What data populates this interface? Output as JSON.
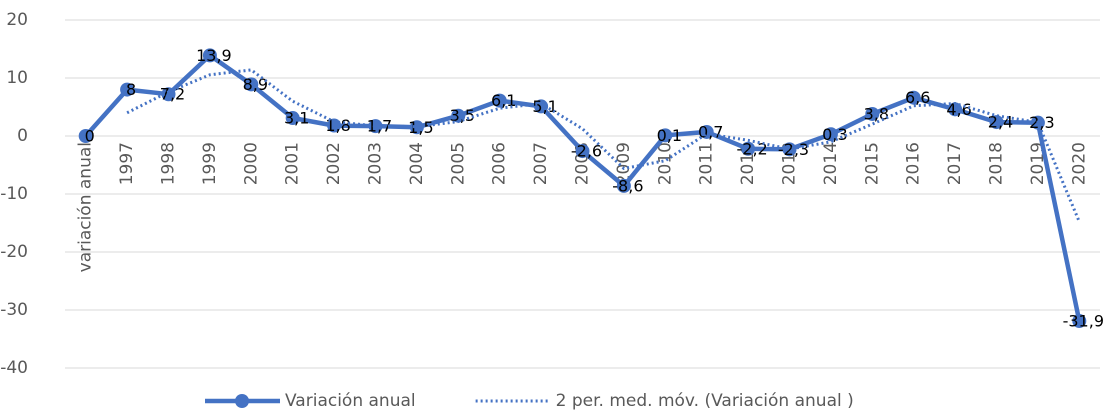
{
  "chart_data": {
    "type": "line",
    "categories": [
      "variación anual",
      "1997",
      "1998",
      "1999",
      "2000",
      "2001",
      "2002",
      "2003",
      "2004",
      "2005",
      "2006",
      "2007",
      "2008",
      "2009",
      "2010",
      "2011",
      "2012",
      "2013",
      "2014",
      "2015",
      "2016",
      "2017",
      "2018",
      "2019",
      "2020"
    ],
    "series": [
      {
        "name": "Variación anual",
        "color": "#4472c4",
        "style": "solid",
        "markers": true,
        "values": [
          0,
          8,
          7.2,
          13.9,
          8.9,
          3.1,
          1.8,
          1.7,
          1.5,
          3.5,
          6.1,
          5.1,
          -2.6,
          -8.6,
          0.1,
          0.7,
          -2.2,
          -2.3,
          0.3,
          3.8,
          6.6,
          4.6,
          2.4,
          2.3,
          -31.9
        ],
        "value_labels": [
          "0",
          "8",
          "7,2",
          "13,9",
          "8,9",
          "3,1",
          "1,8",
          "1,7",
          "1,5",
          "3,5",
          "6,1",
          "5,1",
          "-2,6",
          "-8,6",
          "0,1",
          "0,7",
          "-2,2",
          "-2,3",
          "0,3",
          "3,8",
          "6,6",
          "4,6",
          "2,4",
          "2,3",
          "-31,9"
        ]
      },
      {
        "name": "2 per. med. móv. (Variación anual )",
        "color": "#4472c4",
        "style": "dotted",
        "markers": false,
        "values": [
          null,
          4,
          7.6,
          10.55,
          11.4,
          6,
          2.45,
          1.75,
          1.6,
          2.5,
          4.8,
          5.6,
          1.25,
          -5.6,
          -4.25,
          0.4,
          -0.75,
          -2.25,
          -1,
          2.05,
          5.2,
          5.6,
          3.5,
          2.35,
          -14.8
        ]
      }
    ],
    "ylim": [
      -40,
      20
    ],
    "yticks": [
      -40,
      -30,
      -20,
      -10,
      0,
      10,
      20
    ],
    "grid": true,
    "legend": "bottom"
  }
}
